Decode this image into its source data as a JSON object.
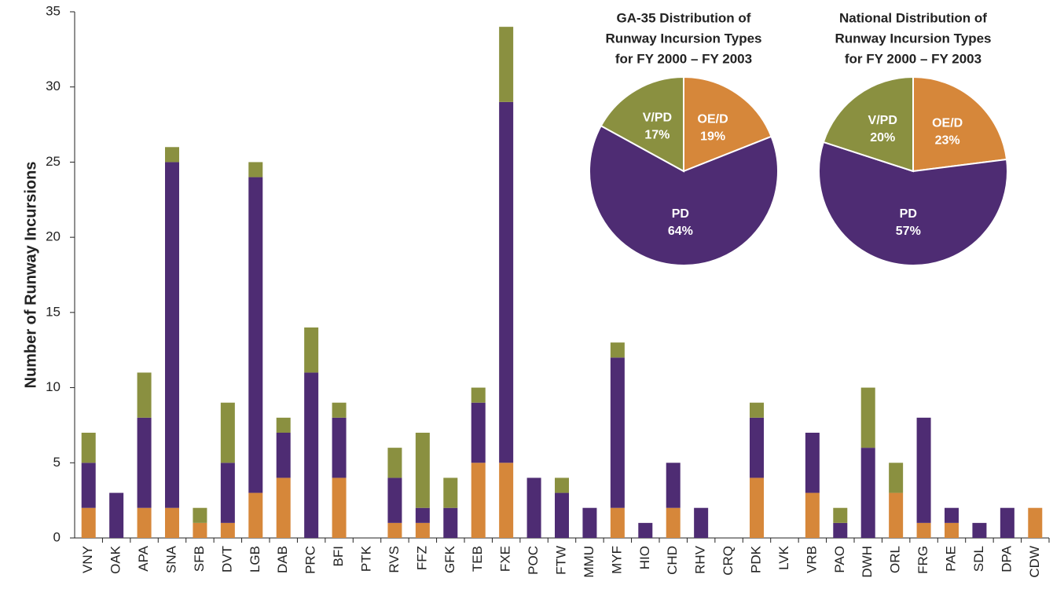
{
  "chart_data": [
    {
      "type": "bar",
      "stacked": true,
      "y_label": "Number of Runway Incursions",
      "categories": [
        "VNY",
        "OAK",
        "APA",
        "SNA",
        "SFB",
        "DVT",
        "LGB",
        "DAB",
        "PRC",
        "BFI",
        "PTK",
        "RVS",
        "FFZ",
        "GFK",
        "TEB",
        "FXE",
        "POC",
        "FTW",
        "MMU",
        "MYF",
        "HIO",
        "CHD",
        "RHV",
        "CRQ",
        "PDK",
        "LVK",
        "VRB",
        "PAO",
        "DWH",
        "ORL",
        "FRG",
        "PAE",
        "SDL",
        "DPA",
        "CDW"
      ],
      "series": [
        {
          "color": "#d6873a",
          "values": [
            2,
            0,
            2,
            2,
            1,
            1,
            3,
            4,
            0,
            4,
            0,
            1,
            1,
            0,
            5,
            5,
            0,
            0,
            0,
            2,
            0,
            2,
            0,
            0,
            4,
            0,
            3,
            0,
            0,
            3,
            1,
            1,
            0,
            0,
            2
          ]
        },
        {
          "color": "#4e2c73",
          "values": [
            3,
            3,
            6,
            23,
            0,
            4,
            21,
            3,
            11,
            4,
            0,
            3,
            1,
            2,
            4,
            24,
            4,
            3,
            2,
            10,
            1,
            3,
            2,
            0,
            4,
            0,
            4,
            1,
            6,
            0,
            7,
            1,
            1,
            2,
            0
          ]
        },
        {
          "color": "#8a9040",
          "values": [
            2,
            0,
            3,
            1,
            1,
            4,
            1,
            1,
            3,
            1,
            0,
            2,
            5,
            2,
            1,
            5,
            0,
            1,
            0,
            1,
            0,
            0,
            0,
            0,
            1,
            0,
            0,
            1,
            4,
            2,
            0,
            0,
            0,
            0,
            0
          ]
        }
      ],
      "ylim": [
        0,
        35
      ],
      "yticks": [
        0,
        5,
        10,
        15,
        20,
        25,
        30,
        35
      ]
    },
    {
      "type": "pie",
      "title": [
        "GA-35 Distribution of",
        "Runway Incursion Types",
        "for FY 2000 – FY 2003"
      ],
      "categories": [
        "OE/D",
        "PD",
        "V/PD"
      ],
      "values": [
        19,
        64,
        17
      ],
      "value_labels": [
        "19%",
        "64%",
        "17%"
      ],
      "colors": [
        "#d6873a",
        "#4e2c73",
        "#8a9040"
      ]
    },
    {
      "type": "pie",
      "title": [
        "National Distribution of",
        "Runway Incursion Types",
        "for FY 2000 – FY 2003"
      ],
      "categories": [
        "OE/D",
        "PD",
        "V/PD"
      ],
      "values": [
        23,
        57,
        20
      ],
      "value_labels": [
        "23%",
        "57%",
        "20%"
      ],
      "colors": [
        "#d6873a",
        "#4e2c73",
        "#8a9040"
      ]
    }
  ]
}
